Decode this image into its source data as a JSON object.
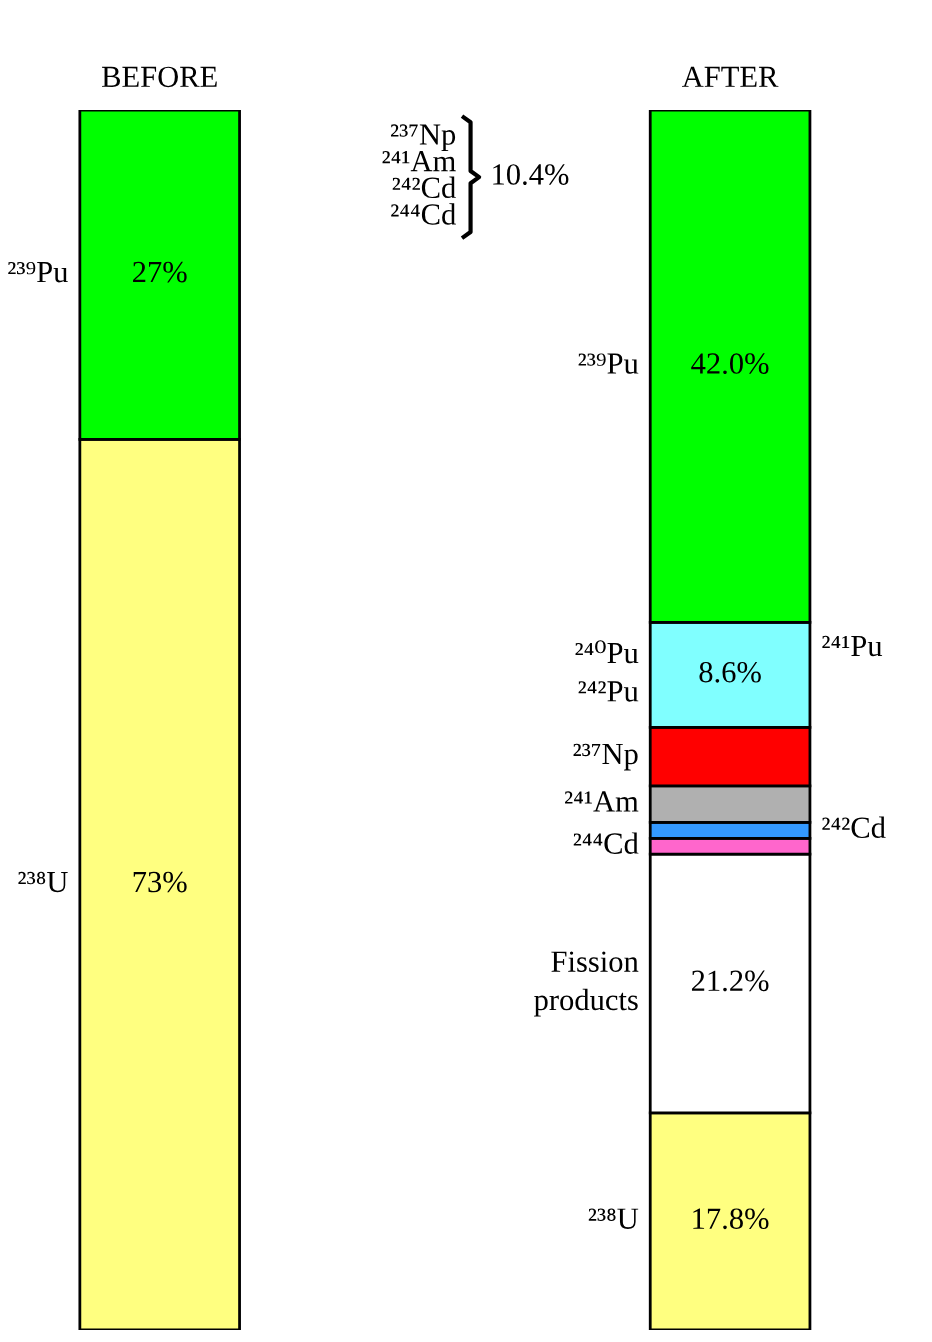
{
  "chart_data": {
    "type": "bar",
    "stacked": true,
    "categories": [
      "BEFORE",
      "AFTER"
    ],
    "series": [
      {
        "name": "²³⁸U",
        "color": "#ffff80",
        "values": [
          73,
          17.8
        ],
        "value_labels": [
          "73%",
          "17.8%"
        ]
      },
      {
        "name": "Fission\nproducts",
        "color": "#ffffff",
        "values": [
          null,
          21.2
        ],
        "value_labels": [
          null,
          "21.2%"
        ]
      },
      {
        "name": "²⁴⁴Cd",
        "color": "#ff66cc",
        "values": [
          null,
          1.3
        ],
        "value_labels": [
          null,
          null
        ]
      },
      {
        "name": "²⁴²Cd",
        "color": "#3399ff",
        "values": [
          null,
          1.3
        ],
        "value_labels": [
          null,
          null
        ]
      },
      {
        "name": "²⁴¹Am",
        "color": "#b0b0b0",
        "values": [
          null,
          3.0
        ],
        "value_labels": [
          null,
          null
        ]
      },
      {
        "name": "²³⁷Np",
        "color": "#ff0000",
        "values": [
          null,
          4.8
        ],
        "value_labels": [
          null,
          null
        ]
      },
      {
        "name": "²⁴⁰Pu\n²⁴²Pu",
        "color": "#80ffff",
        "values": [
          null,
          8.6
        ],
        "value_labels": [
          null,
          "8.6%"
        ]
      },
      {
        "name": "²³⁹Pu",
        "color": "#00ff00",
        "values": [
          27,
          42.0
        ],
        "value_labels": [
          "27%",
          "42.0%"
        ]
      }
    ],
    "annotations": [
      "²³⁷Np\n²⁴¹Am\n²⁴²Cd\n²⁴⁴Cd",
      "10.4%",
      "²⁴¹Pu"
    ]
  }
}
